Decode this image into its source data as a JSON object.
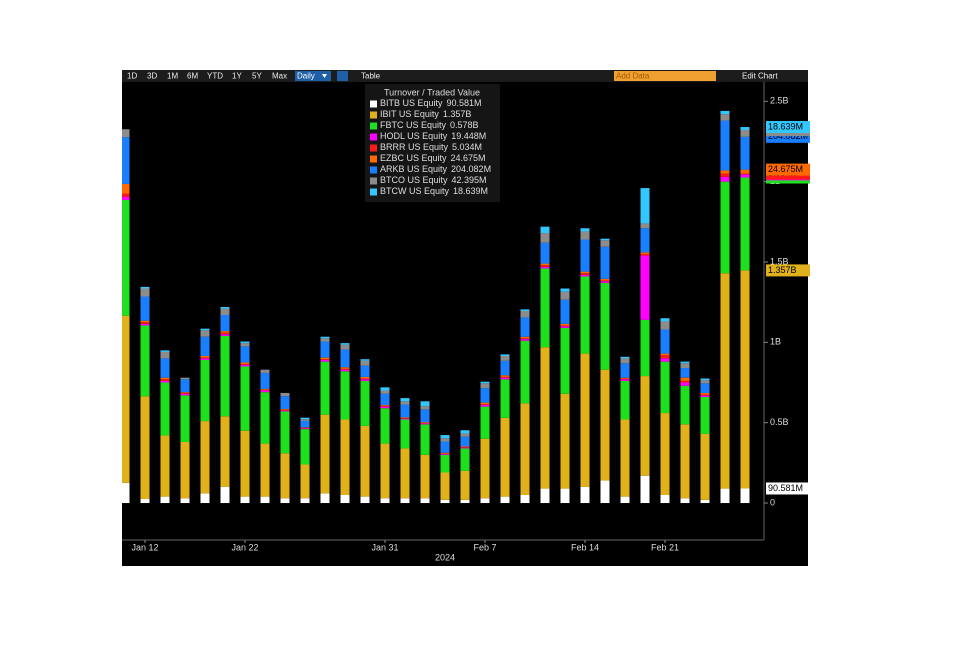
{
  "toolbar": {
    "ranges": [
      "1D",
      "3D",
      "1M",
      "6M",
      "YTD",
      "1Y",
      "5Y",
      "Max"
    ],
    "frequency": "Daily",
    "table": "Table",
    "add_data": "Add Data",
    "edit_chart": "Edit Chart"
  },
  "chart_data": {
    "type": "stacked_bar",
    "legend_title": "Turnover / Traded Value",
    "x_label": "2024",
    "categories": [
      null,
      "Jan 12",
      null,
      null,
      null,
      null,
      "Jan 22",
      null,
      null,
      null,
      null,
      null,
      null,
      "Jan 31",
      null,
      null,
      null,
      null,
      "Feb 7",
      null,
      null,
      null,
      null,
      "Feb 14",
      null,
      null,
      null,
      "Feb 21",
      null,
      null,
      null,
      null
    ],
    "ylim": [
      -0.23,
      2.62
    ],
    "yticks": [
      {
        "value": 0,
        "label": "0"
      },
      {
        "value": 0.5,
        "label": "0.5B"
      },
      {
        "value": 1,
        "label": "1B"
      },
      {
        "value": 1.5,
        "label": "1.5B"
      },
      {
        "value": 2,
        "label": "2B"
      },
      {
        "value": 2.5,
        "label": "2.5B"
      }
    ],
    "series": [
      {
        "name": "BITB US Equity",
        "last_value_label": "90.581M",
        "color": "#ffffff",
        "values": [
          0.126,
          0.025,
          0.04,
          0.03,
          0.06,
          0.1,
          0.04,
          0.04,
          0.03,
          0.03,
          0.06,
          0.05,
          0.04,
          0.03,
          0.03,
          0.03,
          0.02,
          0.02,
          0.03,
          0.04,
          0.05,
          0.09,
          0.09,
          0.1,
          0.14,
          0.04,
          0.17,
          0.05,
          0.03,
          0.02,
          0.09,
          0.090581
        ]
      },
      {
        "name": "IBIT US Equity",
        "last_value_label": "1.357B",
        "color": "#e0b11a",
        "values": [
          1.04,
          0.64,
          0.38,
          0.35,
          0.45,
          0.44,
          0.41,
          0.33,
          0.28,
          0.21,
          0.49,
          0.47,
          0.44,
          0.34,
          0.31,
          0.27,
          0.17,
          0.18,
          0.37,
          0.49,
          0.57,
          0.88,
          0.59,
          0.83,
          0.69,
          0.48,
          0.62,
          0.51,
          0.46,
          0.41,
          1.34,
          1.357
        ]
      },
      {
        "name": "FBTC US Equity",
        "last_value_label": "0.578B",
        "color": "#1fe01f",
        "values": [
          0.72,
          0.44,
          0.33,
          0.29,
          0.38,
          0.5,
          0.4,
          0.32,
          0.26,
          0.22,
          0.33,
          0.3,
          0.28,
          0.22,
          0.18,
          0.19,
          0.11,
          0.14,
          0.2,
          0.24,
          0.39,
          0.49,
          0.41,
          0.48,
          0.54,
          0.24,
          0.35,
          0.32,
          0.24,
          0.23,
          0.57,
          0.578
        ]
      },
      {
        "name": "HODL US Equity",
        "last_value_label": "19.448M",
        "color": "#ff00ff",
        "values": [
          0.02,
          0.01,
          0.01,
          0.01,
          0.01,
          0.01,
          0.01,
          0.01,
          0.005,
          0.005,
          0.01,
          0.01,
          0.01,
          0.01,
          0.005,
          0.005,
          0.005,
          0.005,
          0.01,
          0.01,
          0.01,
          0.01,
          0.01,
          0.01,
          0.01,
          0.01,
          0.4,
          0.02,
          0.02,
          0.01,
          0.03,
          0.019448
        ]
      },
      {
        "name": "BRRR US Equity",
        "last_value_label": "5.034M",
        "color": "#ff1a1a",
        "values": [
          0.02,
          0.01,
          0.01,
          0.005,
          0.005,
          0.01,
          0.005,
          0.005,
          0.005,
          0.003,
          0.005,
          0.005,
          0.005,
          0.005,
          0.003,
          0.003,
          0.003,
          0.003,
          0.005,
          0.005,
          0.005,
          0.01,
          0.005,
          0.01,
          0.005,
          0.005,
          0.01,
          0.02,
          0.01,
          0.005,
          0.02,
          0.005034
        ]
      },
      {
        "name": "EZBC US Equity",
        "last_value_label": "24.675M",
        "color": "#ff6a00",
        "values": [
          0.06,
          0.01,
          0.01,
          0.005,
          0.01,
          0.01,
          0.01,
          0.005,
          0.005,
          0.003,
          0.01,
          0.01,
          0.01,
          0.005,
          0.005,
          0.005,
          0.005,
          0.005,
          0.01,
          0.01,
          0.01,
          0.01,
          0.01,
          0.01,
          0.01,
          0.005,
          0.01,
          0.01,
          0.02,
          0.01,
          0.02,
          0.024675
        ]
      },
      {
        "name": "ARKB US Equity",
        "last_value_label": "204.082M",
        "color": "#1a7fff",
        "values": [
          0.29,
          0.15,
          0.12,
          0.08,
          0.12,
          0.1,
          0.1,
          0.1,
          0.08,
          0.04,
          0.1,
          0.11,
          0.07,
          0.07,
          0.08,
          0.08,
          0.07,
          0.06,
          0.09,
          0.09,
          0.12,
          0.13,
          0.15,
          0.2,
          0.2,
          0.09,
          0.15,
          0.15,
          0.06,
          0.06,
          0.31,
          0.204082
        ]
      },
      {
        "name": "BTCO US Equity",
        "last_value_label": "42.395M",
        "color": "#8c8c8c",
        "values": [
          0.05,
          0.05,
          0.04,
          0.01,
          0.04,
          0.04,
          0.02,
          0.02,
          0.02,
          0.01,
          0.02,
          0.03,
          0.03,
          0.02,
          0.02,
          0.02,
          0.02,
          0.02,
          0.03,
          0.03,
          0.04,
          0.06,
          0.05,
          0.05,
          0.04,
          0.03,
          0.03,
          0.05,
          0.03,
          0.02,
          0.04,
          0.042395
        ]
      },
      {
        "name": "BTCW US Equity",
        "last_value_label": "18.639M",
        "color": "#33c6ff",
        "values": [
          0,
          0.01,
          0.01,
          0,
          0.01,
          0.01,
          0.01,
          0,
          0,
          0.01,
          0.01,
          0.01,
          0.01,
          0.02,
          0.02,
          0.03,
          0.02,
          0.02,
          0.01,
          0.01,
          0.01,
          0.04,
          0.02,
          0.02,
          0.01,
          0.01,
          0.22,
          0.02,
          0.01,
          0.01,
          0.02,
          0.018639
        ]
      }
    ]
  }
}
